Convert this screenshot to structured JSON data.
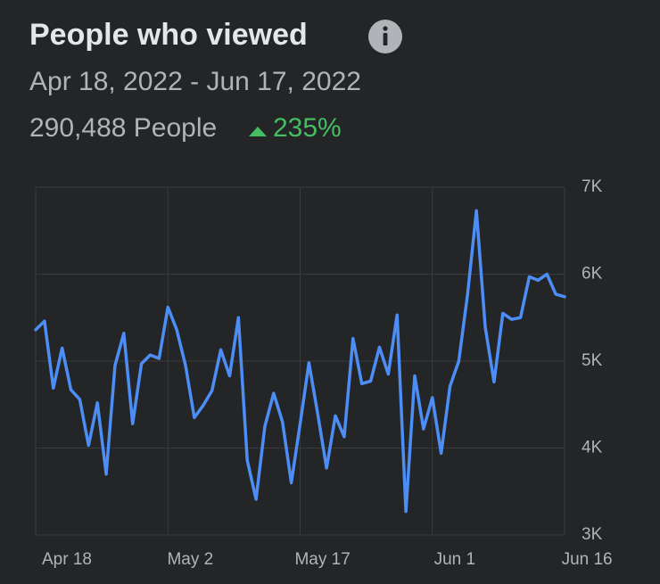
{
  "chart_data": {
    "type": "line",
    "title": "People who viewed",
    "subtitle": "Apr 18, 2022 - Jun 17, 2022",
    "total": "290,488 People",
    "change": "235%",
    "categories": [
      "Apr 18",
      null,
      null,
      null,
      null,
      null,
      null,
      null,
      null,
      null,
      null,
      null,
      null,
      null,
      "May 2",
      null,
      null,
      null,
      null,
      null,
      null,
      null,
      null,
      null,
      null,
      null,
      null,
      null,
      null,
      "May 17",
      null,
      null,
      null,
      null,
      null,
      null,
      null,
      null,
      null,
      null,
      null,
      null,
      null,
      null,
      "Jun 1",
      null,
      null,
      null,
      null,
      null,
      null,
      null,
      null,
      null,
      null,
      null,
      null,
      null,
      null,
      "Jun 16",
      null
    ],
    "series": [
      {
        "name": "People",
        "color": "#4c8df6",
        "values": [
          5360,
          5460,
          4690,
          5150,
          4670,
          4560,
          4030,
          4520,
          3700,
          4950,
          5320,
          4280,
          4970,
          5070,
          5030,
          5620,
          5360,
          4950,
          4350,
          4490,
          4660,
          5130,
          4830,
          5500,
          3860,
          3410,
          4250,
          4630,
          4300,
          3600,
          4280,
          4980,
          4390,
          3770,
          4370,
          4130,
          5260,
          4740,
          4770,
          5160,
          4850,
          5530,
          3270,
          4830,
          4220,
          4580,
          3940,
          4710,
          5000,
          5770,
          6730,
          5390,
          4760,
          5550,
          5480,
          5500,
          5970,
          5930,
          6000,
          5770,
          5740
        ]
      }
    ],
    "ylim": [
      3000,
      7000
    ],
    "yticks": [
      {
        "value": 3000,
        "label": "3K"
      },
      {
        "value": 4000,
        "label": "4K"
      },
      {
        "value": 5000,
        "label": "5K"
      },
      {
        "value": 6000,
        "label": "6K"
      },
      {
        "value": 7000,
        "label": "7K"
      }
    ],
    "grid": true
  }
}
